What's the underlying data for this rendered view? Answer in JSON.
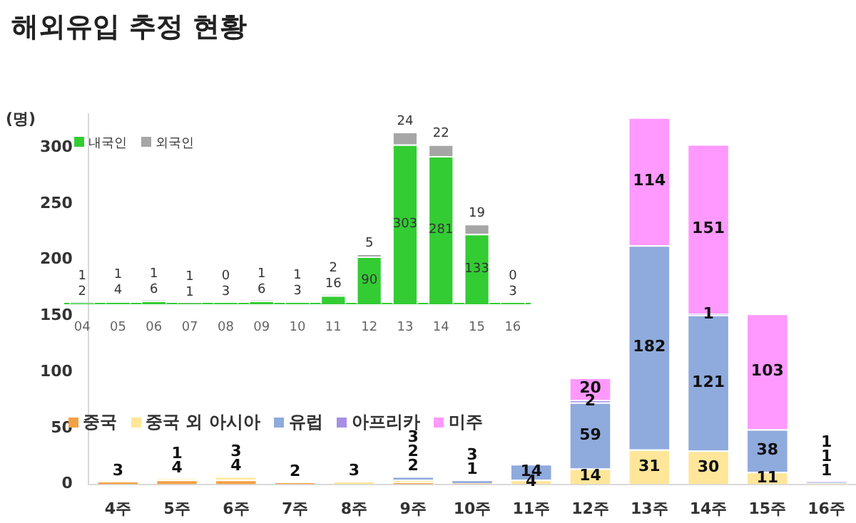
{
  "chart_data": [
    {
      "type": "bar",
      "title": "해외유입 추정 현황",
      "ylabel": "(명)",
      "stacked": true,
      "data_labels": true,
      "legend": "bottom left",
      "grid": false,
      "categories": [
        "4주",
        "5주",
        "6주",
        "7주",
        "8주",
        "9주",
        "10주",
        "11주",
        "12주",
        "13주",
        "14주",
        "15주",
        "16주"
      ],
      "ylim": [
        0,
        330
      ],
      "yticks": [
        0,
        50,
        100,
        150,
        200,
        250,
        300
      ],
      "series": [
        {
          "name": "중국",
          "color": "#f4a143",
          "values": [
            3,
            4,
            4,
            2,
            null,
            2,
            1,
            null,
            null,
            null,
            null,
            null,
            null
          ]
        },
        {
          "name": "중국 외 아시아",
          "color": "#ffe699",
          "values": [
            null,
            1,
            3,
            null,
            3,
            2,
            null,
            4,
            14,
            31,
            30,
            11,
            1
          ]
        },
        {
          "name": "유럽",
          "color": "#8faadc",
          "values": [
            null,
            null,
            null,
            null,
            null,
            3,
            3,
            14,
            59,
            182,
            121,
            38,
            1
          ]
        },
        {
          "name": "아프리카",
          "color": "#a78fe6",
          "values": [
            null,
            null,
            null,
            null,
            null,
            null,
            null,
            null,
            2,
            null,
            1,
            null,
            null
          ]
        },
        {
          "name": "미주",
          "color": "#ff99ff",
          "values": [
            null,
            null,
            null,
            null,
            null,
            null,
            null,
            null,
            20,
            114,
            151,
            103,
            1
          ]
        }
      ]
    },
    {
      "type": "bar",
      "stacked": true,
      "data_labels": true,
      "legend": "top left",
      "grid": false,
      "categories": [
        "04",
        "05",
        "06",
        "07",
        "08",
        "09",
        "10",
        "11",
        "12",
        "13",
        "14",
        "15",
        "16"
      ],
      "series": [
        {
          "name": "내국인",
          "color": "#33cc33",
          "values": [
            2,
            4,
            6,
            1,
            3,
            6,
            3,
            16,
            90,
            303,
            281,
            133,
            3
          ]
        },
        {
          "name": "외국인",
          "color": "#a6a6a6",
          "values": [
            1,
            1,
            1,
            1,
            0,
            1,
            1,
            2,
            5,
            24,
            22,
            19,
            0
          ]
        }
      ]
    }
  ]
}
